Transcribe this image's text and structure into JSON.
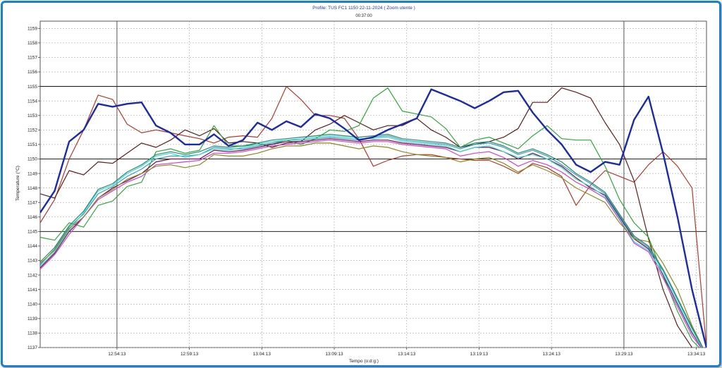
{
  "chart_data": {
    "type": "line",
    "title": "Profile: TUS FC1 1150 22-11-2024 ( Zoom utente )",
    "subtitle": "00:37:00",
    "xlabel": "Tempo (o:d:g:)",
    "ylabel": "Temperature (°C)",
    "xlim": [
      0,
      46
    ],
    "ylim": [
      1137,
      1159.5
    ],
    "x_tick_labels": [
      {
        "x": 5.3,
        "label": "12:54:13"
      },
      {
        "x": 10.3,
        "label": "12:59:13"
      },
      {
        "x": 15.3,
        "label": "13:04:13"
      },
      {
        "x": 20.3,
        "label": "13:09:13"
      },
      {
        "x": 25.3,
        "label": "13:14:13"
      },
      {
        "x": 30.3,
        "label": "13:19:13"
      },
      {
        "x": 35.3,
        "label": "13:24:13"
      },
      {
        "x": 40.3,
        "label": "13:29:13"
      },
      {
        "x": 45.3,
        "label": "13:34:13"
      }
    ],
    "y_ticks": [
      1137,
      1138,
      1139,
      1140,
      1141,
      1142,
      1143,
      1144,
      1145,
      1146,
      1147,
      1148,
      1149,
      1150,
      1151,
      1152,
      1153,
      1154,
      1155,
      1156,
      1157,
      1158,
      1159
    ],
    "reference_lines": [
      1145,
      1150,
      1155
    ],
    "marker_times": [
      5.3,
      40.3
    ],
    "grid": true,
    "series": [
      {
        "color": "#1a2aa8",
        "width": 2.4,
        "x": [
          0,
          1,
          2,
          3,
          4,
          5,
          6,
          7,
          8,
          9,
          10,
          11,
          12,
          13,
          14,
          15,
          16,
          17,
          18,
          19,
          20,
          21,
          22,
          23,
          24,
          25,
          26,
          27,
          28,
          29,
          30,
          31,
          32,
          33,
          34,
          35,
          36,
          37,
          38,
          39,
          40,
          41,
          42,
          43,
          44,
          45,
          46,
          47
        ],
        "y": [
          1146.3,
          1147.8,
          1151.2,
          1152.0,
          1153.8,
          1153.6,
          1153.8,
          1153.9,
          1152.3,
          1151.8,
          1151.0,
          1151.0,
          1151.7,
          1150.9,
          1151.3,
          1152.5,
          1152.0,
          1152.6,
          1152.2,
          1153.1,
          1152.8,
          1152.1,
          1151.3,
          1151.5,
          1152.0,
          1152.4,
          1152.8,
          1154.8,
          1154.4,
          1154.0,
          1153.5,
          1154.0,
          1154.6,
          1154.7,
          1153.2,
          1152.0,
          1151.0,
          1149.6,
          1149.1,
          1149.8,
          1149.6,
          1152.7,
          1154.3,
          1150.4,
          1146.0,
          1141.0,
          1137.0,
          1136.5
        ]
      },
      {
        "color": "#b4382c",
        "width": 1.2,
        "x": [
          0,
          1,
          2,
          3,
          4,
          5,
          6,
          7,
          8,
          9,
          10,
          11,
          12,
          13,
          14,
          15,
          16,
          17,
          18,
          19,
          20,
          21,
          22,
          23,
          24,
          25,
          26,
          27,
          28,
          29,
          30,
          31,
          32,
          33,
          34,
          35,
          36,
          37,
          38,
          39,
          40,
          41,
          42,
          43,
          44,
          45,
          46,
          47
        ],
        "y": [
          1145.6,
          1147.2,
          1150.0,
          1152.0,
          1154.4,
          1154.1,
          1152.4,
          1151.8,
          1152.0,
          1151.8,
          1151.6,
          1151.4,
          1151.1,
          1151.5,
          1151.6,
          1151.5,
          1152.8,
          1155.0,
          1154.1,
          1153.0,
          1153.0,
          1152.8,
          1151.4,
          1149.5,
          1149.9,
          1150.2,
          1150.3,
          1150.3,
          1150.1,
          1150.0,
          1149.9,
          1149.9,
          1149.5,
          1149.0,
          1149.7,
          1149.4,
          1148.8,
          1146.8,
          1148.2,
          1149.2,
          1148.8,
          1148.4,
          1149.6,
          1150.5,
          1149.5,
          1148.0,
          1137.0,
          1136.5
        ]
      },
      {
        "color": "#5a1e1a",
        "width": 1.2,
        "x": [
          0,
          1,
          2,
          3,
          4,
          5,
          6,
          7,
          8,
          9,
          10,
          11,
          12,
          13,
          14,
          15,
          16,
          17,
          18,
          19,
          20,
          21,
          22,
          23,
          24,
          25,
          26,
          27,
          28,
          29,
          30,
          31,
          32,
          33,
          34,
          35,
          36,
          37,
          38,
          39,
          40,
          41,
          42,
          43,
          44,
          45,
          46
        ],
        "y": [
          1147.6,
          1147.3,
          1149.2,
          1148.9,
          1149.8,
          1149.7,
          1150.4,
          1151.1,
          1150.8,
          1151.3,
          1152.0,
          1151.6,
          1152.1,
          1151.1,
          1151.2,
          1151.1,
          1150.8,
          1151.1,
          1151.2,
          1152.0,
          1152.4,
          1153.0,
          1152.5,
          1152.0,
          1152.3,
          1152.3,
          1152.8,
          1152.0,
          1151.5,
          1150.8,
          1151.0,
          1151.2,
          1151.5,
          1152.1,
          1153.9,
          1153.9,
          1154.9,
          1154.6,
          1154.2,
          1152.5,
          1151.0,
          1148.5,
          1144.5,
          1141.0,
          1138.5,
          1137.0,
          1136.5
        ]
      },
      {
        "color": "#2ea838",
        "width": 1.2,
        "x": [
          0,
          1,
          2,
          3,
          4,
          5,
          6,
          7,
          8,
          9,
          10,
          11,
          12,
          13,
          14,
          15,
          16,
          17,
          18,
          19,
          20,
          21,
          22,
          23,
          24,
          25,
          26,
          27,
          28,
          29,
          30,
          31,
          32,
          33,
          34,
          35,
          36,
          37,
          38,
          39,
          40,
          41,
          42,
          43,
          44,
          45,
          46
        ],
        "y": [
          1144.6,
          1144.4,
          1145.6,
          1145.3,
          1146.8,
          1147.1,
          1148.1,
          1148.4,
          1150.5,
          1150.7,
          1150.4,
          1150.6,
          1152.3,
          1150.9,
          1150.9,
          1151.0,
          1151.0,
          1151.3,
          1151.0,
          1151.4,
          1152.0,
          1151.9,
          1152.3,
          1154.2,
          1154.9,
          1153.3,
          1153.1,
          1152.9,
          1152.1,
          1150.8,
          1151.3,
          1151.5,
          1151.1,
          1150.7,
          1151.6,
          1152.3,
          1151.4,
          1151.3,
          1151.3,
          1149.5,
          1147.2,
          1145.6,
          1144.6,
          1142.0,
          1139.5,
          1137.5,
          1136.5
        ]
      },
      {
        "color": "#6e1040",
        "width": 1.2,
        "x": [
          0,
          1,
          2,
          3,
          4,
          5,
          6,
          7,
          8,
          9,
          10,
          11,
          12,
          13,
          14,
          15,
          16,
          17,
          18,
          19,
          20,
          21,
          22,
          23,
          24,
          25,
          26,
          27,
          28,
          29,
          30,
          31,
          32,
          33,
          34,
          35,
          36,
          37,
          38,
          39,
          40,
          41,
          42,
          43,
          44,
          45,
          46
        ],
        "y": [
          1142.5,
          1143.5,
          1145.0,
          1146.0,
          1147.3,
          1148.0,
          1148.5,
          1149.0,
          1149.8,
          1150.0,
          1150.0,
          1150.0,
          1150.6,
          1150.5,
          1150.6,
          1150.8,
          1151.0,
          1151.2,
          1151.2,
          1151.3,
          1151.4,
          1151.3,
          1151.2,
          1151.3,
          1151.3,
          1151.1,
          1151.0,
          1150.9,
          1150.8,
          1150.5,
          1150.8,
          1150.8,
          1150.5,
          1150.0,
          1150.4,
          1150.0,
          1149.5,
          1148.7,
          1148.0,
          1147.5,
          1146.0,
          1144.5,
          1143.8,
          1142.0,
          1140.0,
          1138.0,
          1136.5
        ]
      },
      {
        "color": "#d040d0",
        "width": 1.2,
        "x": [
          0,
          1,
          2,
          3,
          4,
          5,
          6,
          7,
          8,
          9,
          10,
          11,
          12,
          13,
          14,
          15,
          16,
          17,
          18,
          19,
          20,
          21,
          22,
          23,
          24,
          25,
          26,
          27,
          28,
          29,
          30,
          31,
          32,
          33,
          34,
          35,
          36,
          37,
          38,
          39,
          40,
          41,
          42,
          43,
          44,
          45,
          46
        ],
        "y": [
          1142.4,
          1143.4,
          1144.8,
          1146.0,
          1147.2,
          1147.8,
          1148.4,
          1148.8,
          1149.6,
          1149.7,
          1149.8,
          1149.9,
          1150.4,
          1150.4,
          1150.5,
          1150.7,
          1150.9,
          1151.0,
          1151.1,
          1151.2,
          1151.3,
          1151.2,
          1151.1,
          1151.2,
          1151.2,
          1151.0,
          1150.9,
          1150.8,
          1150.7,
          1150.2,
          1150.4,
          1150.5,
          1150.1,
          1149.5,
          1149.9,
          1149.6,
          1149.1,
          1148.4,
          1147.9,
          1147.3,
          1145.8,
          1144.2,
          1143.6,
          1141.8,
          1139.8,
          1137.8,
          1136.5
        ]
      },
      {
        "color": "#3a9ec0",
        "width": 1.2,
        "x": [
          0,
          1,
          2,
          3,
          4,
          5,
          6,
          7,
          8,
          9,
          10,
          11,
          12,
          13,
          14,
          15,
          16,
          17,
          18,
          19,
          20,
          21,
          22,
          23,
          24,
          25,
          26,
          27,
          28,
          29,
          30,
          31,
          32,
          33,
          34,
          35,
          36,
          37,
          38,
          39,
          40,
          41,
          42,
          43,
          44,
          45,
          46
        ],
        "y": [
          1142.7,
          1143.8,
          1145.3,
          1146.2,
          1147.6,
          1148.1,
          1148.8,
          1149.3,
          1150.0,
          1150.2,
          1150.2,
          1150.3,
          1150.8,
          1150.7,
          1150.7,
          1150.9,
          1151.1,
          1151.3,
          1151.3,
          1151.4,
          1151.5,
          1151.4,
          1151.3,
          1151.5,
          1151.6,
          1151.3,
          1151.2,
          1151.1,
          1151.0,
          1150.7,
          1151.0,
          1151.1,
          1150.8,
          1150.3,
          1150.6,
          1150.2,
          1149.6,
          1148.9,
          1148.3,
          1147.6,
          1146.1,
          1144.6,
          1143.9,
          1142.3,
          1140.3,
          1138.3,
          1136.5
        ]
      },
      {
        "color": "#40d8d8",
        "width": 1.2,
        "x": [
          0,
          1,
          2,
          3,
          4,
          5,
          6,
          7,
          8,
          9,
          10,
          11,
          12,
          13,
          14,
          15,
          16,
          17,
          18,
          19,
          20,
          21,
          22,
          23,
          24,
          25,
          26,
          27,
          28,
          29,
          30,
          31,
          32,
          33,
          34,
          35,
          36,
          37,
          38,
          39,
          40,
          41,
          42,
          43,
          44,
          45,
          46
        ],
        "y": [
          1142.6,
          1143.6,
          1145.1,
          1146.3,
          1147.8,
          1148.2,
          1149.0,
          1149.5,
          1150.2,
          1150.4,
          1150.1,
          1150.3,
          1150.7,
          1150.6,
          1150.8,
          1151.0,
          1151.2,
          1151.3,
          1151.4,
          1151.5,
          1151.6,
          1151.5,
          1151.4,
          1151.4,
          1151.5,
          1151.2,
          1151.1,
          1151.0,
          1150.9,
          1150.5,
          1150.8,
          1150.9,
          1150.5,
          1150.1,
          1150.3,
          1150.0,
          1149.4,
          1148.6,
          1148.1,
          1147.4,
          1145.9,
          1144.3,
          1143.7,
          1142.1,
          1140.1,
          1138.1,
          1136.5
        ]
      },
      {
        "color": "#8a8a20",
        "width": 1.2,
        "x": [
          0,
          1,
          2,
          3,
          4,
          5,
          6,
          7,
          8,
          9,
          10,
          11,
          12,
          13,
          14,
          15,
          16,
          17,
          18,
          19,
          20,
          21,
          22,
          23,
          24,
          25,
          26,
          27,
          28,
          29,
          30,
          31,
          32,
          33,
          34,
          35,
          36,
          37,
          38,
          39,
          40,
          41,
          42,
          43,
          44,
          45,
          46
        ],
        "y": [
          1142.8,
          1143.7,
          1145.2,
          1146.0,
          1147.3,
          1147.9,
          1148.6,
          1149.0,
          1149.5,
          1149.6,
          1149.4,
          1149.6,
          1150.3,
          1150.2,
          1150.2,
          1150.4,
          1150.7,
          1150.9,
          1150.9,
          1151.1,
          1151.1,
          1150.9,
          1150.7,
          1150.9,
          1150.8,
          1150.5,
          1150.3,
          1150.2,
          1150.1,
          1149.8,
          1150.0,
          1150.1,
          1149.7,
          1149.1,
          1149.6,
          1149.2,
          1148.7,
          1148.0,
          1147.5,
          1147.0,
          1145.6,
          1144.5,
          1144.3,
          1142.8,
          1141.0,
          1138.5,
          1136.5
        ]
      },
      {
        "color": "#2c8a6a",
        "width": 1.2,
        "x": [
          0,
          1,
          2,
          3,
          4,
          5,
          6,
          7,
          8,
          9,
          10,
          11,
          12,
          13,
          14,
          15,
          16,
          17,
          18,
          19,
          20,
          21,
          22,
          23,
          24,
          25,
          26,
          27,
          28,
          29,
          30,
          31,
          32,
          33,
          34,
          35,
          36,
          37,
          38,
          39,
          40,
          41,
          42,
          43,
          44,
          45,
          46
        ],
        "y": [
          1142.9,
          1143.9,
          1145.4,
          1146.4,
          1147.9,
          1148.3,
          1149.1,
          1149.6,
          1150.3,
          1150.5,
          1150.3,
          1150.5,
          1150.9,
          1150.8,
          1150.9,
          1151.1,
          1151.3,
          1151.4,
          1151.5,
          1151.6,
          1151.7,
          1151.6,
          1151.5,
          1151.6,
          1151.7,
          1151.4,
          1151.3,
          1151.2,
          1151.1,
          1150.8,
          1151.1,
          1151.2,
          1150.9,
          1150.4,
          1150.7,
          1150.3,
          1149.8,
          1149.0,
          1148.4,
          1147.7,
          1146.2,
          1144.7,
          1144.0,
          1142.4,
          1140.4,
          1138.4,
          1136.5
        ]
      }
    ]
  }
}
